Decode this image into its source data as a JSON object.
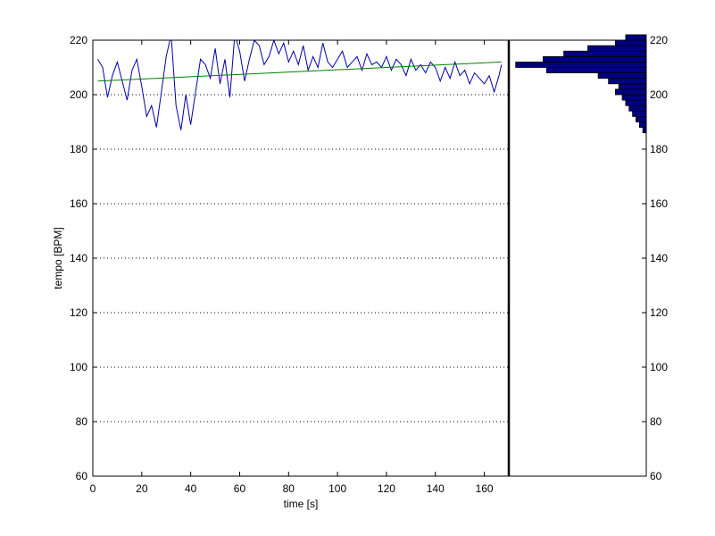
{
  "chart_data": [
    {
      "type": "line",
      "xlabel": "time [s]",
      "ylabel": "tempo [BPM]",
      "xlim": [
        0,
        170
      ],
      "ylim": [
        60,
        220
      ],
      "x_ticks": [
        0,
        20,
        40,
        60,
        80,
        100,
        120,
        140,
        160
      ],
      "y_ticks": [
        60,
        80,
        100,
        120,
        140,
        160,
        180,
        200,
        220
      ],
      "grid": "horizontal dotted",
      "series": [
        {
          "color": "#0000aa",
          "x": [
            2,
            4,
            6,
            8,
            10,
            12,
            14,
            16,
            18,
            20,
            22,
            24,
            26,
            28,
            30,
            32,
            34,
            36,
            38,
            40,
            42,
            44,
            46,
            48,
            50,
            52,
            54,
            56,
            58,
            60,
            62,
            64,
            66,
            68,
            70,
            72,
            74,
            76,
            78,
            80,
            82,
            84,
            86,
            88,
            90,
            92,
            94,
            96,
            98,
            100,
            102,
            104,
            106,
            108,
            110,
            112,
            114,
            116,
            118,
            120,
            122,
            124,
            126,
            128,
            130,
            132,
            134,
            136,
            138,
            140,
            142,
            144,
            146,
            148,
            150,
            152,
            154,
            156,
            158,
            160,
            162,
            164,
            166,
            167
          ],
          "values": [
            213,
            210,
            199,
            207,
            212,
            205,
            198,
            209,
            213,
            203,
            192,
            196,
            188,
            201,
            214,
            222,
            196,
            187,
            200,
            189,
            201,
            213,
            211,
            206,
            217,
            204,
            213,
            199,
            222,
            216,
            205,
            213,
            220,
            218,
            211,
            214,
            220,
            215,
            219,
            212,
            216,
            211,
            218,
            209,
            214,
            210,
            219,
            212,
            210,
            213,
            216,
            210,
            212,
            214,
            209,
            215,
            211,
            212,
            210,
            214,
            209,
            213,
            211,
            207,
            213,
            209,
            211,
            208,
            212,
            210,
            205,
            210,
            206,
            212,
            207,
            209,
            204,
            208,
            206,
            204,
            207,
            201,
            207,
            211
          ]
        },
        {
          "color": "#008000",
          "x": [
            2,
            167
          ],
          "values": [
            205,
            212
          ]
        }
      ]
    },
    {
      "type": "bar",
      "orientation": "horizontal",
      "ylim": [
        60,
        220
      ],
      "y_ticks": [
        60,
        80,
        100,
        120,
        140,
        160,
        180,
        200,
        220
      ],
      "y_axis_side": "right",
      "color": "#000080",
      "bins": [
        186,
        188,
        190,
        192,
        194,
        196,
        198,
        200,
        202,
        204,
        206,
        208,
        210,
        212,
        214,
        216,
        218,
        220
      ],
      "values": [
        1,
        2,
        3,
        4,
        5,
        6,
        7,
        9,
        8,
        11,
        14,
        29,
        38,
        30,
        24,
        17,
        9,
        6
      ]
    }
  ]
}
